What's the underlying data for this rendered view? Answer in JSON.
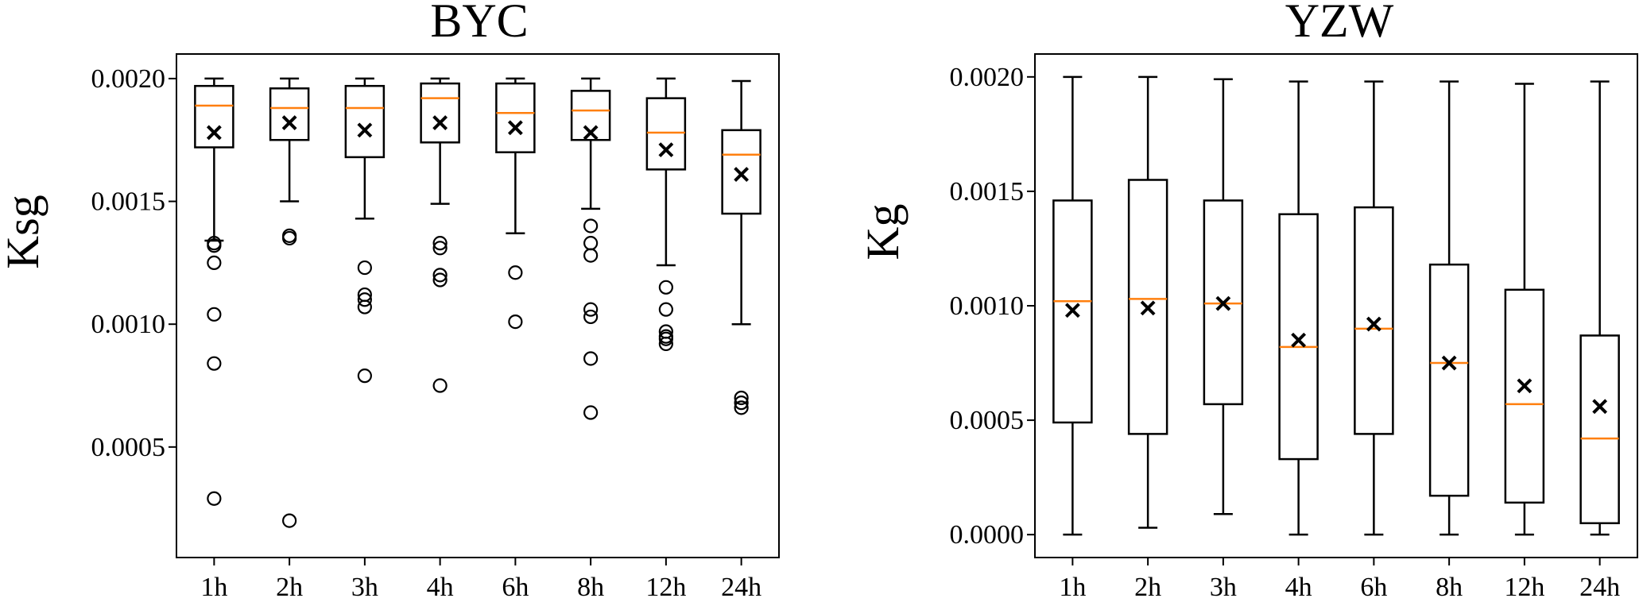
{
  "chart_data": [
    {
      "type": "box",
      "title": "BYC",
      "ylabel": "Ksg",
      "xlabel": "",
      "categories": [
        "1h",
        "2h",
        "3h",
        "4h",
        "6h",
        "8h",
        "12h",
        "24h"
      ],
      "ylim": [
        5e-05,
        0.0021
      ],
      "yticks": [
        0.0005,
        0.001,
        0.0015,
        0.002
      ],
      "ytick_labels": [
        "0.0005",
        "0.0010",
        "0.0015",
        "0.0020"
      ],
      "median_color": "#ff7f0e",
      "boxes": [
        {
          "whislo": 0.00134,
          "q1": 0.00172,
          "med": 0.00189,
          "q3": 0.00197,
          "whishi": 0.002,
          "mean": 0.00178,
          "fliers": [
            0.00133,
            0.00132,
            0.00125,
            0.00104,
            0.00084,
            0.00029
          ]
        },
        {
          "whislo": 0.0015,
          "q1": 0.00175,
          "med": 0.00188,
          "q3": 0.00196,
          "whishi": 0.002,
          "mean": 0.00182,
          "fliers": [
            0.00136,
            0.00135,
            0.0002
          ]
        },
        {
          "whislo": 0.00143,
          "q1": 0.00168,
          "med": 0.00188,
          "q3": 0.00197,
          "whishi": 0.002,
          "mean": 0.00179,
          "fliers": [
            0.00123,
            0.00112,
            0.0011,
            0.00107,
            0.00079
          ]
        },
        {
          "whislo": 0.00149,
          "q1": 0.00174,
          "med": 0.00192,
          "q3": 0.00198,
          "whishi": 0.002,
          "mean": 0.00182,
          "fliers": [
            0.00133,
            0.00131,
            0.0012,
            0.00118,
            0.00075
          ]
        },
        {
          "whislo": 0.00137,
          "q1": 0.0017,
          "med": 0.00186,
          "q3": 0.00198,
          "whishi": 0.002,
          "mean": 0.0018,
          "fliers": [
            0.00121,
            0.00101
          ]
        },
        {
          "whislo": 0.00147,
          "q1": 0.00175,
          "med": 0.00187,
          "q3": 0.00195,
          "whishi": 0.002,
          "mean": 0.00178,
          "fliers": [
            0.0014,
            0.00133,
            0.00128,
            0.00106,
            0.00103,
            0.00086,
            0.00064
          ]
        },
        {
          "whislo": 0.00124,
          "q1": 0.00163,
          "med": 0.00178,
          "q3": 0.00192,
          "whishi": 0.002,
          "mean": 0.00171,
          "fliers": [
            0.00115,
            0.00106,
            0.00097,
            0.00095,
            0.00094,
            0.00092
          ]
        },
        {
          "whislo": 0.001,
          "q1": 0.00145,
          "med": 0.00169,
          "q3": 0.00179,
          "whishi": 0.00199,
          "mean": 0.00161,
          "fliers": [
            0.0007,
            0.00068,
            0.00066
          ]
        }
      ]
    },
    {
      "type": "box",
      "title": "YZW",
      "ylabel": "Kg",
      "xlabel": "",
      "categories": [
        "1h",
        "2h",
        "3h",
        "4h",
        "6h",
        "8h",
        "12h",
        "24h"
      ],
      "ylim": [
        -0.0001,
        0.0021
      ],
      "yticks": [
        0.0,
        0.0005,
        0.001,
        0.0015,
        0.002
      ],
      "ytick_labels": [
        "0.0000",
        "0.0005",
        "0.0010",
        "0.0015",
        "0.0020"
      ],
      "median_color": "#ff7f0e",
      "boxes": [
        {
          "whislo": 0.0,
          "q1": 0.00049,
          "med": 0.00102,
          "q3": 0.00146,
          "whishi": 0.002,
          "mean": 0.00098,
          "fliers": []
        },
        {
          "whislo": 3e-05,
          "q1": 0.00044,
          "med": 0.00103,
          "q3": 0.00155,
          "whishi": 0.002,
          "mean": 0.00099,
          "fliers": []
        },
        {
          "whislo": 9e-05,
          "q1": 0.00057,
          "med": 0.00101,
          "q3": 0.00146,
          "whishi": 0.00199,
          "mean": 0.00101,
          "fliers": []
        },
        {
          "whislo": 0.0,
          "q1": 0.00033,
          "med": 0.00082,
          "q3": 0.0014,
          "whishi": 0.00198,
          "mean": 0.00085,
          "fliers": []
        },
        {
          "whislo": 0.0,
          "q1": 0.00044,
          "med": 0.0009,
          "q3": 0.00143,
          "whishi": 0.00198,
          "mean": 0.00092,
          "fliers": []
        },
        {
          "whislo": 0.0,
          "q1": 0.00017,
          "med": 0.00075,
          "q3": 0.00118,
          "whishi": 0.00198,
          "mean": 0.00075,
          "fliers": []
        },
        {
          "whislo": 0.0,
          "q1": 0.00014,
          "med": 0.00057,
          "q3": 0.00107,
          "whishi": 0.00197,
          "mean": 0.00065,
          "fliers": []
        },
        {
          "whislo": 0.0,
          "q1": 5e-05,
          "med": 0.00042,
          "q3": 0.00087,
          "whishi": 0.00198,
          "mean": 0.00056,
          "fliers": []
        }
      ]
    }
  ]
}
